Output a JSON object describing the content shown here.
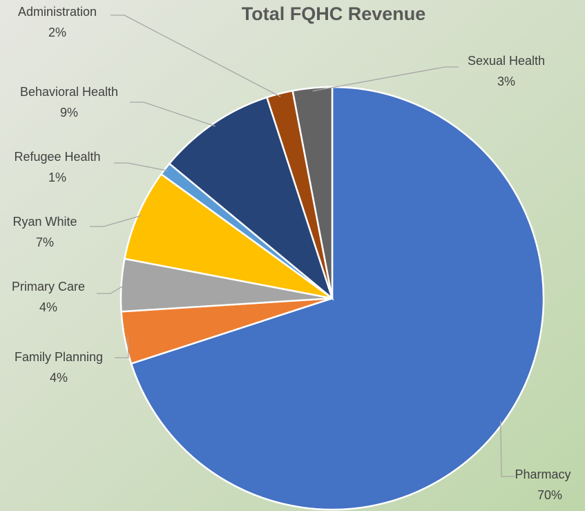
{
  "chart_data": {
    "type": "pie",
    "title": "Total FQHC Revenue",
    "categories": [
      "Pharmacy",
      "Family Planning",
      "Primary Care",
      "Ryan White",
      "Refugee Health",
      "Behavioral Health",
      "Administration",
      "Sexual Health"
    ],
    "values": [
      70,
      4,
      4,
      7,
      1,
      9,
      2,
      3
    ],
    "value_labels": [
      "70%",
      "4%",
      "4%",
      "7%",
      "1%",
      "9%",
      "2%",
      "3%"
    ],
    "colors": [
      "#4472c4",
      "#ed7d31",
      "#a5a5a5",
      "#ffc000",
      "#5b9bd5",
      "#264478",
      "#9e480e",
      "#636363"
    ]
  }
}
